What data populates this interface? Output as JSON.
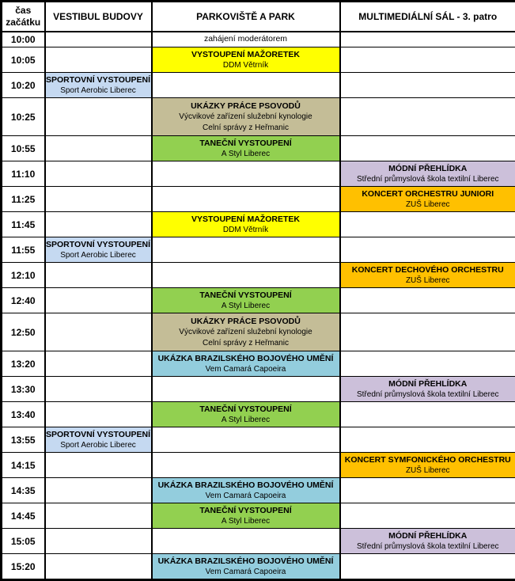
{
  "header": {
    "time": "čas\nzačátku",
    "vestibul": "VESTIBUL BUDOVY",
    "parkoviste": "PARKOVIŠTĚ A PARK",
    "sal": "MULTIMEDIÁLNÍ SÁL - 3. patro"
  },
  "colors": {
    "white": "#FFFFFF",
    "yellow": "#FFFF00",
    "blue": "#C5D9F1",
    "tan": "#C4BD97",
    "green": "#92D050",
    "purple": "#CCC0DA",
    "orange": "#FFC000",
    "cyan": "#93CDDD",
    "border": "#000000"
  },
  "rows": [
    {
      "time": "10:00",
      "column": "parkoviste",
      "color": "white",
      "bold": false,
      "size": "s",
      "title": "zahájení moderátorem",
      "subtitles": []
    },
    {
      "time": "10:05",
      "column": "parkoviste",
      "color": "yellow",
      "bold": true,
      "size": "m",
      "title": "VYSTOUPENÍ MAŽORETEK",
      "subtitles": [
        "DDM Větrník"
      ]
    },
    {
      "time": "10:20",
      "column": "vestibul",
      "color": "blue",
      "bold": true,
      "size": "m",
      "title": "SPORTOVNÍ VYSTOUPENÍ",
      "subtitles": [
        "Sport Aerobic Liberec"
      ]
    },
    {
      "time": "10:25",
      "column": "parkoviste",
      "color": "tan",
      "bold": true,
      "size": "l",
      "title": "UKÁZKY PRÁCE PSOVODŮ",
      "subtitles": [
        "Výcvikové zařízení služební kynologie",
        "Celní správy z Heřmanic"
      ]
    },
    {
      "time": "10:55",
      "column": "parkoviste",
      "color": "green",
      "bold": true,
      "size": "m",
      "title": "TANEČNÍ VYSTOUPENÍ",
      "subtitles": [
        "A Styl Liberec"
      ]
    },
    {
      "time": "11:10",
      "column": "sal",
      "color": "purple",
      "bold": true,
      "size": "m",
      "title": "MÓDNÍ PŘEHLÍDKA",
      "subtitles": [
        "Střední průmyslová škola textilní Liberec"
      ]
    },
    {
      "time": "11:25",
      "column": "sal",
      "color": "orange",
      "bold": true,
      "size": "m",
      "title": "KONCERT ORCHESTRU JUNIORI",
      "subtitles": [
        "ZUŠ Liberec"
      ]
    },
    {
      "time": "11:45",
      "column": "parkoviste",
      "color": "yellow",
      "bold": true,
      "size": "m",
      "title": "VYSTOUPENÍ MAŽORETEK",
      "subtitles": [
        "DDM Větrník"
      ]
    },
    {
      "time": "11:55",
      "column": "vestibul",
      "color": "blue",
      "bold": true,
      "size": "m",
      "title": "SPORTOVNÍ VYSTOUPENÍ",
      "subtitles": [
        "Sport Aerobic Liberec"
      ]
    },
    {
      "time": "12:10",
      "column": "sal",
      "color": "orange",
      "bold": true,
      "size": "m",
      "title": "KONCERT DECHOVÉHO ORCHESTRU",
      "subtitles": [
        "ZUŠ Liberec"
      ]
    },
    {
      "time": "12:40",
      "column": "parkoviste",
      "color": "green",
      "bold": true,
      "size": "m",
      "title": "TANEČNÍ VYSTOUPENÍ",
      "subtitles": [
        "A Styl Liberec"
      ]
    },
    {
      "time": "12:50",
      "column": "parkoviste",
      "color": "tan",
      "bold": true,
      "size": "l",
      "title": "UKÁZKY PRÁCE PSOVODŮ",
      "subtitles": [
        "Výcvikové zařízení služební kynologie",
        "Celní správy z Heřmanic"
      ]
    },
    {
      "time": "13:20",
      "column": "parkoviste",
      "color": "cyan",
      "bold": true,
      "size": "m",
      "title": "UKÁZKA BRAZILSKÉHO BOJOVÉHO UMĚNÍ",
      "subtitles": [
        "Vem Camará Capoeira"
      ]
    },
    {
      "time": "13:30",
      "column": "sal",
      "color": "purple",
      "bold": true,
      "size": "m",
      "title": "MÓDNÍ PŘEHLÍDKA",
      "subtitles": [
        "Střední průmyslová škola textilní Liberec"
      ]
    },
    {
      "time": "13:40",
      "column": "parkoviste",
      "color": "green",
      "bold": true,
      "size": "m",
      "title": "TANEČNÍ VYSTOUPENÍ",
      "subtitles": [
        "A Styl Liberec"
      ]
    },
    {
      "time": "13:55",
      "column": "vestibul",
      "color": "blue",
      "bold": true,
      "size": "m",
      "title": "SPORTOVNÍ VYSTOUPENÍ",
      "subtitles": [
        "Sport Aerobic Liberec"
      ]
    },
    {
      "time": "14:15",
      "column": "sal",
      "color": "orange",
      "bold": true,
      "size": "m",
      "title": "KONCERT SYMFONICKÉHO ORCHESTRU",
      "subtitles": [
        "ZUŠ Liberec"
      ]
    },
    {
      "time": "14:35",
      "column": "parkoviste",
      "color": "cyan",
      "bold": true,
      "size": "m",
      "title": "UKÁZKA BRAZILSKÉHO BOJOVÉHO UMĚNÍ",
      "subtitles": [
        "Vem Camará Capoeira"
      ]
    },
    {
      "time": "14:45",
      "column": "parkoviste",
      "color": "green",
      "bold": true,
      "size": "m",
      "title": "TANEČNÍ VYSTOUPENÍ",
      "subtitles": [
        "A Styl Liberec"
      ]
    },
    {
      "time": "15:05",
      "column": "sal",
      "color": "purple",
      "bold": true,
      "size": "m",
      "title": "MÓDNÍ PŘEHLÍDKA",
      "subtitles": [
        "Střední průmyslová škola textilní Liberec"
      ]
    },
    {
      "time": "15:20",
      "column": "parkoviste",
      "color": "cyan",
      "bold": true,
      "size": "m",
      "title": "UKÁZKA BRAZILSKÉHO BOJOVÉHO UMĚNÍ",
      "subtitles": [
        "Vem Camará Capoeira"
      ]
    }
  ]
}
